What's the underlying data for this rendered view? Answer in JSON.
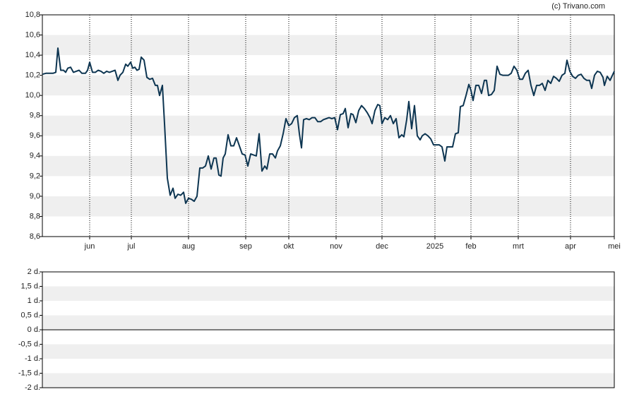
{
  "credit": "(c) Trivano.com",
  "chart_data": [
    {
      "type": "line",
      "x": [
        0,
        2.5,
        7.5,
        9.5,
        11,
        13,
        15,
        16.5,
        18,
        20,
        22,
        24,
        26,
        28,
        30.5,
        32,
        33.5,
        35.5,
        37.5,
        39.5,
        41.5,
        43.5,
        45.5,
        47.5,
        49.5,
        51.5,
        53.5,
        55,
        57,
        59,
        60.5,
        62.5,
        64,
        65.5,
        67,
        68.5,
        70,
        72,
        74,
        76,
        78,
        80,
        81.5,
        83,
        85,
        86.5,
        88.5,
        90.5,
        92.5,
        94,
        96,
        98,
        100,
        101.5,
        103.5,
        105.5,
        107.5,
        109.5,
        111.5,
        113.5,
        115.5,
        117.5,
        119.5,
        121.5,
        123,
        125,
        126.5,
        128,
        129.5,
        131.5,
        133.5,
        135.5,
        137.5,
        139.5,
        141.5,
        143.5,
        145.5,
        147.5,
        149.5,
        151.5,
        153.5,
        155.5,
        157.5,
        159,
        161,
        163,
        165,
        166.5,
        168.5,
        170.5,
        172.5,
        174.5,
        176.5,
        178.5,
        180.5,
        182,
        183.5,
        185,
        187,
        189,
        191,
        193,
        195,
        197,
        199,
        201,
        203,
        205,
        207,
        209,
        211,
        213,
        214.5,
        216.5,
        218.5,
        220,
        222,
        224,
        226,
        228,
        230,
        232,
        233.5,
        235.5,
        237.5,
        239,
        240.5,
        242.5,
        244.5,
        246.5,
        248.5,
        250.5,
        252.5,
        254.5,
        256,
        258,
        259.5,
        261.5,
        263.5,
        265.5,
        267.5,
        269,
        271,
        273,
        275,
        277,
        279,
        281,
        283,
        285,
        286.5,
        288.5,
        290.5,
        292.5,
        294.5,
        296,
        298,
        300,
        302,
        303.5,
        305,
        307,
        309,
        311,
        313,
        314.5,
        316,
        318,
        320,
        322,
        324,
        326,
        328,
        330,
        332,
        334,
        336,
        338,
        340,
        342,
        344,
        346,
        348,
        350,
        352,
        354,
        356,
        358,
        360,
        362,
        364,
        366,
        368,
        370,
        371.5,
        373.5,
        375.5,
        377.5,
        379.5,
        381.5,
        383.5,
        385.5,
        387.5,
        389,
        391,
        393,
        395,
        397,
        398,
        400,
        402,
        405
      ],
      "series": [
        {
          "color": "#0d3551",
          "values": [
            10.21,
            10.22,
            10.22,
            10.23,
            10.47,
            10.25,
            10.25,
            10.23,
            10.27,
            10.28,
            10.23,
            10.24,
            10.25,
            10.22,
            10.22,
            10.25,
            10.33,
            10.23,
            10.23,
            10.25,
            10.24,
            10.22,
            10.24,
            10.23,
            10.24,
            10.25,
            10.15,
            10.2,
            10.23,
            10.31,
            10.29,
            10.33,
            10.27,
            10.28,
            10.25,
            10.26,
            10.38,
            10.35,
            10.18,
            10.16,
            10.17,
            10.1,
            10.1,
            10.0,
            10.1,
            9.72,
            9.18,
            9.01,
            9.08,
            8.98,
            9.02,
            9.01,
            9.04,
            8.93,
            8.98,
            8.97,
            8.95,
            9.0,
            9.28,
            9.28,
            9.3,
            9.4,
            9.27,
            9.38,
            9.38,
            9.21,
            9.2,
            9.38,
            9.42,
            9.61,
            9.5,
            9.5,
            9.58,
            9.5,
            9.42,
            9.41,
            9.3,
            9.42,
            9.41,
            9.4,
            9.62,
            9.25,
            9.3,
            9.27,
            9.42,
            9.42,
            9.38,
            9.45,
            9.5,
            9.62,
            9.77,
            9.7,
            9.72,
            9.78,
            9.8,
            9.62,
            9.48,
            9.76,
            9.77,
            9.76,
            9.78,
            9.78,
            9.74,
            9.74,
            9.76,
            9.77,
            9.78,
            9.77,
            9.78,
            9.66,
            9.81,
            9.82,
            9.87,
            9.68,
            9.82,
            9.81,
            9.73,
            9.85,
            9.9,
            9.87,
            9.83,
            9.78,
            9.72,
            9.85,
            9.91,
            9.9,
            9.72,
            9.78,
            9.76,
            9.8,
            9.72,
            9.77,
            9.58,
            9.61,
            9.59,
            9.76,
            9.94,
            9.67,
            9.9,
            9.6,
            9.56,
            9.6,
            9.62,
            9.6,
            9.57,
            9.51,
            9.51,
            9.51,
            9.49,
            9.35,
            9.49,
            9.49,
            9.49,
            9.62,
            9.63,
            9.89,
            9.9,
            10.0,
            10.11,
            10.05,
            9.95,
            10.1,
            10.1,
            10.02,
            10.15,
            10.15,
            10.0,
            10.01,
            10.05,
            10.29,
            10.21,
            10.2,
            10.2,
            10.2,
            10.22,
            10.29,
            10.25,
            10.16,
            10.16,
            10.22,
            10.25,
            10.1,
            10.0,
            10.1,
            10.1,
            10.12,
            10.05,
            10.15,
            10.12,
            10.19,
            10.17,
            10.14,
            10.2,
            10.22,
            10.35,
            10.24,
            10.19,
            10.17,
            10.2,
            10.21,
            10.17,
            10.15,
            10.15,
            10.07,
            10.2,
            10.24,
            10.23,
            10.18,
            10.1,
            10.19,
            10.15,
            10.24
          ]
        }
      ],
      "xlim": [
        0,
        405
      ],
      "xticks": [
        {
          "value": 33.5,
          "label": "jun"
        },
        {
          "value": 63,
          "label": "jul"
        },
        {
          "value": 103.5,
          "label": "aug"
        },
        {
          "value": 144,
          "label": "sep"
        },
        {
          "value": 174.5,
          "label": "okt"
        },
        {
          "value": 208,
          "label": "nov"
        },
        {
          "value": 240.5,
          "label": "dec"
        },
        {
          "value": 278,
          "label": "2025"
        },
        {
          "value": 303.5,
          "label": "feb"
        },
        {
          "value": 337,
          "label": "mrt"
        },
        {
          "value": 374,
          "label": "apr"
        },
        {
          "value": 405,
          "label": "mei"
        }
      ],
      "ylim": [
        8.6,
        10.8
      ],
      "yticks": [
        {
          "value": 8.6,
          "label": "8,6"
        },
        {
          "value": 8.8,
          "label": "8,8"
        },
        {
          "value": 9.0,
          "label": "9,0"
        },
        {
          "value": 9.2,
          "label": "9,2"
        },
        {
          "value": 9.4,
          "label": "9,4"
        },
        {
          "value": 9.6,
          "label": "9,6"
        },
        {
          "value": 9.8,
          "label": "9,8"
        },
        {
          "value": 10.0,
          "label": "10,0"
        },
        {
          "value": 10.2,
          "label": "10,2"
        },
        {
          "value": 10.4,
          "label": "10,4"
        },
        {
          "value": 10.6,
          "label": "10,6"
        },
        {
          "value": 10.8,
          "label": "10,8"
        }
      ],
      "bands": true,
      "xgrid": true
    },
    {
      "type": "bar",
      "ylim": [
        -2,
        2
      ],
      "yticks": [
        {
          "value": -2,
          "label": "-2 d."
        },
        {
          "value": -1.5,
          "label": "-1,5 d."
        },
        {
          "value": -1,
          "label": "-1 d."
        },
        {
          "value": -0.5,
          "label": "-0,5 d."
        },
        {
          "value": 0,
          "label": "0 d."
        },
        {
          "value": 0.5,
          "label": "0,5 d."
        },
        {
          "value": 1,
          "label": "1 d."
        },
        {
          "value": 1.5,
          "label": "1,5 d."
        },
        {
          "value": 2,
          "label": "2 d."
        }
      ],
      "bands": true,
      "zero_line": true
    }
  ]
}
